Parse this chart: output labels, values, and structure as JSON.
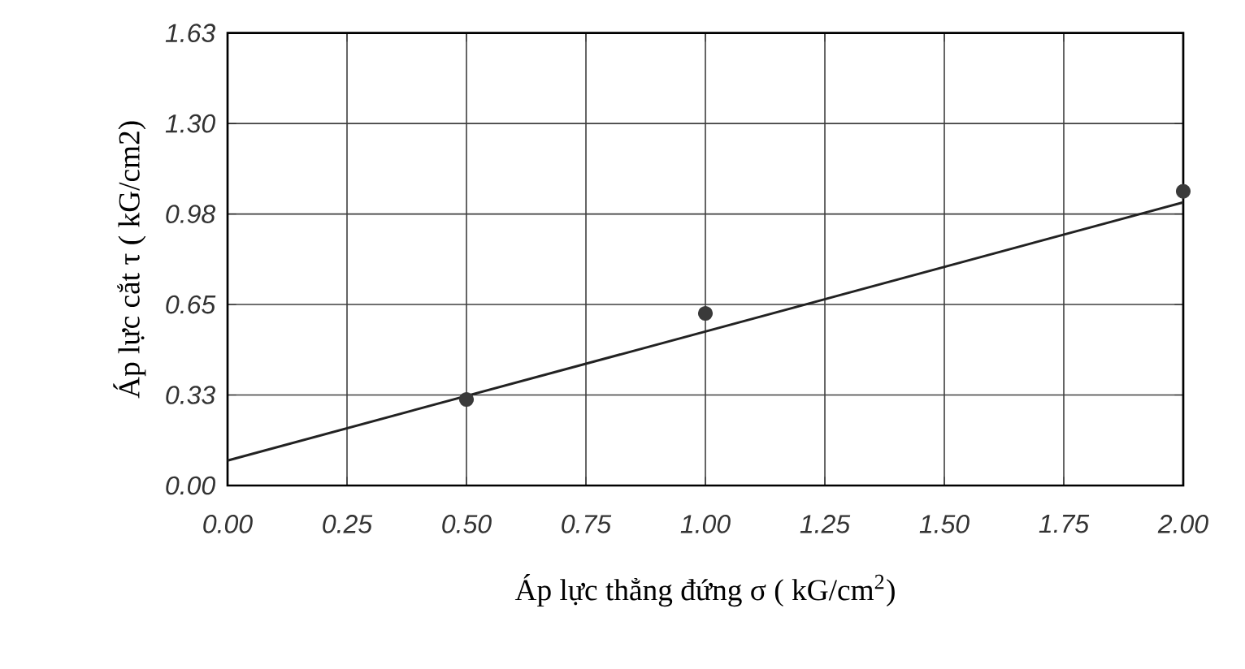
{
  "chart_data": {
    "type": "scatter",
    "xlabel": "Áp lực thẳng đứng σ ( kG/cm$^{2}$)",
    "ylabel": "Áp lực cắt τ ( kG/cm2)",
    "xlim": [
      0,
      2
    ],
    "ylim": [
      0,
      1.63
    ],
    "xticks": [
      {
        "value": 0,
        "label": "0.00"
      },
      {
        "value": 0.25,
        "label": "0.25"
      },
      {
        "value": 0.5,
        "label": "0.50"
      },
      {
        "value": 0.75,
        "label": "0.75"
      },
      {
        "value": 1,
        "label": "1.00"
      },
      {
        "value": 1.25,
        "label": "1.25"
      },
      {
        "value": 1.5,
        "label": "1.50"
      },
      {
        "value": 1.75,
        "label": "1.75"
      },
      {
        "value": 2,
        "label": "2.00"
      }
    ],
    "yticks": [
      {
        "value": 0,
        "label": "0.00"
      },
      {
        "value": 0.326,
        "label": "0.33"
      },
      {
        "value": 0.652,
        "label": "0.65"
      },
      {
        "value": 0.978,
        "label": "0.98"
      },
      {
        "value": 1.304,
        "label": "1.30"
      },
      {
        "value": 1.63,
        "label": "1.63"
      }
    ],
    "grid": true,
    "series": [
      {
        "x": [
          0.5,
          1.0,
          2.0
        ],
        "values": [
          0.31,
          0.62,
          1.06
        ],
        "color": "#3a3a3a",
        "marker": "circle"
      },
      {
        "type": "line",
        "x": [
          0,
          2
        ],
        "values": [
          0.09,
          1.02
        ],
        "color": "#222222",
        "marker": "none",
        "line_style": "solid"
      }
    ]
  }
}
